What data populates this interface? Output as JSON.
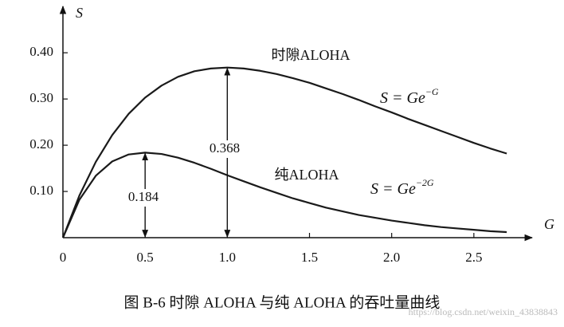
{
  "chart_data": {
    "type": "line",
    "title": "图 B-6 时隙 ALOHA 与纯 ALOHA 的吞吐量曲线",
    "x_label": "G",
    "y_label": "S",
    "x": [
      0,
      0.1,
      0.2,
      0.3,
      0.4,
      0.5,
      0.6,
      0.7,
      0.8,
      0.9,
      1.0,
      1.1,
      1.2,
      1.3,
      1.4,
      1.5,
      1.6,
      1.7,
      1.8,
      1.9,
      2.0,
      2.1,
      2.2,
      2.3,
      2.4,
      2.5,
      2.6,
      2.7
    ],
    "series": [
      {
        "name": "时隙ALOHA",
        "color": "#1a1a1a",
        "values": [
          0,
          0.091,
          0.164,
          0.222,
          0.268,
          0.303,
          0.329,
          0.348,
          0.36,
          0.366,
          0.368,
          0.366,
          0.361,
          0.354,
          0.345,
          0.335,
          0.323,
          0.311,
          0.298,
          0.284,
          0.271,
          0.257,
          0.244,
          0.231,
          0.218,
          0.205,
          0.193,
          0.182
        ]
      },
      {
        "name": "纯ALOHA",
        "color": "#1a1a1a",
        "values": [
          0,
          0.082,
          0.134,
          0.165,
          0.18,
          0.184,
          0.181,
          0.173,
          0.162,
          0.149,
          0.135,
          0.122,
          0.109,
          0.097,
          0.085,
          0.075,
          0.065,
          0.057,
          0.049,
          0.043,
          0.037,
          0.032,
          0.027,
          0.023,
          0.02,
          0.017,
          0.014,
          0.012
        ]
      }
    ],
    "formulas": [
      {
        "text": "S = Ge",
        "sup": "−G"
      },
      {
        "text": "S = Ge",
        "sup": "−2G"
      }
    ],
    "peaks": [
      {
        "x": 1.0,
        "value": 0.368
      },
      {
        "x": 0.5,
        "value": 0.184
      }
    ],
    "xlim": [
      0,
      2.84
    ],
    "ylim": [
      0,
      0.49
    ],
    "xticks": [
      0,
      0.5,
      {
        "value": 1,
        "label": "1.0"
      },
      1.5,
      {
        "value": 2,
        "label": "2.0"
      },
      2.5
    ],
    "yticks": [
      {
        "value": 0.1,
        "label": "0.10"
      },
      {
        "value": 0.2,
        "label": "0.20"
      },
      {
        "value": 0.3,
        "label": "0.30"
      },
      {
        "value": 0.4,
        "label": "0.40"
      }
    ],
    "watermark": "https://blog.csdn.net/weixin_43838843"
  }
}
